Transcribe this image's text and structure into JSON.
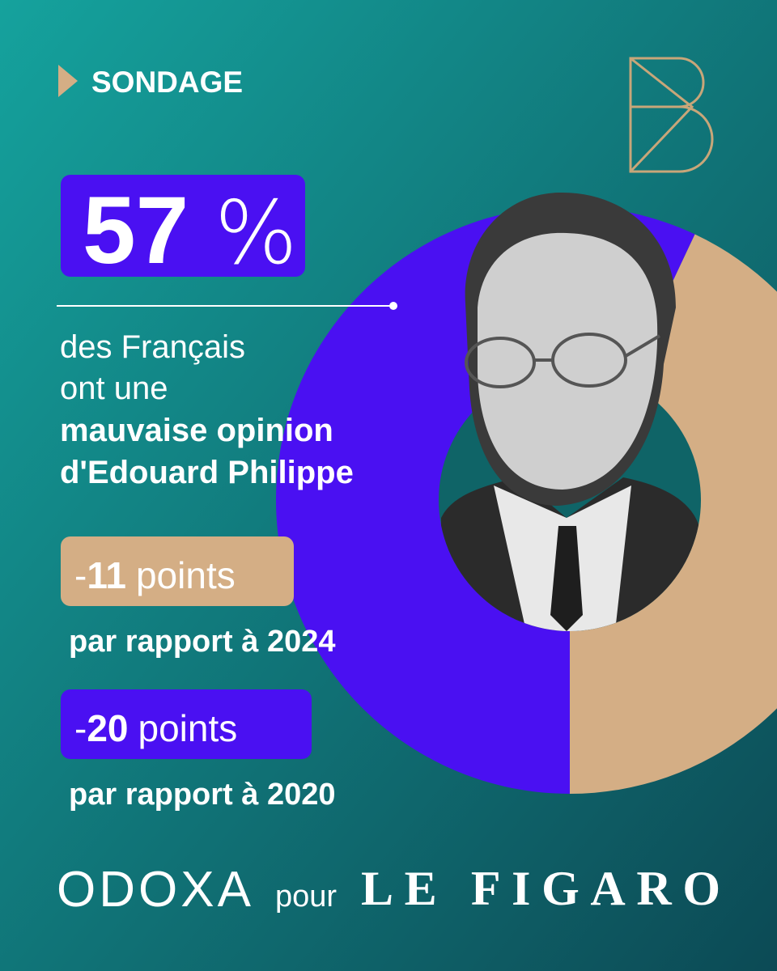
{
  "header": {
    "label": "SONDAGE"
  },
  "headline": {
    "figure": "57",
    "figure_unit": "%",
    "lines": [
      "des Français",
      "ont une"
    ],
    "bold_lines": [
      "mauvaise opinion",
      "d'Edouard Philippe"
    ]
  },
  "donut": {
    "values": [
      57,
      43
    ],
    "colors": [
      "#4a10f2",
      "#d4ae85"
    ]
  },
  "badges": [
    {
      "sign": "-",
      "number": "11",
      "unit": "points",
      "caption": "par rapport à 2024",
      "color": "#d4ae85"
    },
    {
      "sign": "-",
      "number": "20",
      "unit": "points",
      "caption": "par rapport à 2020",
      "color": "#4a10f2"
    }
  ],
  "footer": {
    "pollster": "ODOXA",
    "joiner": "pour",
    "outlet": "LE FIGARO"
  }
}
